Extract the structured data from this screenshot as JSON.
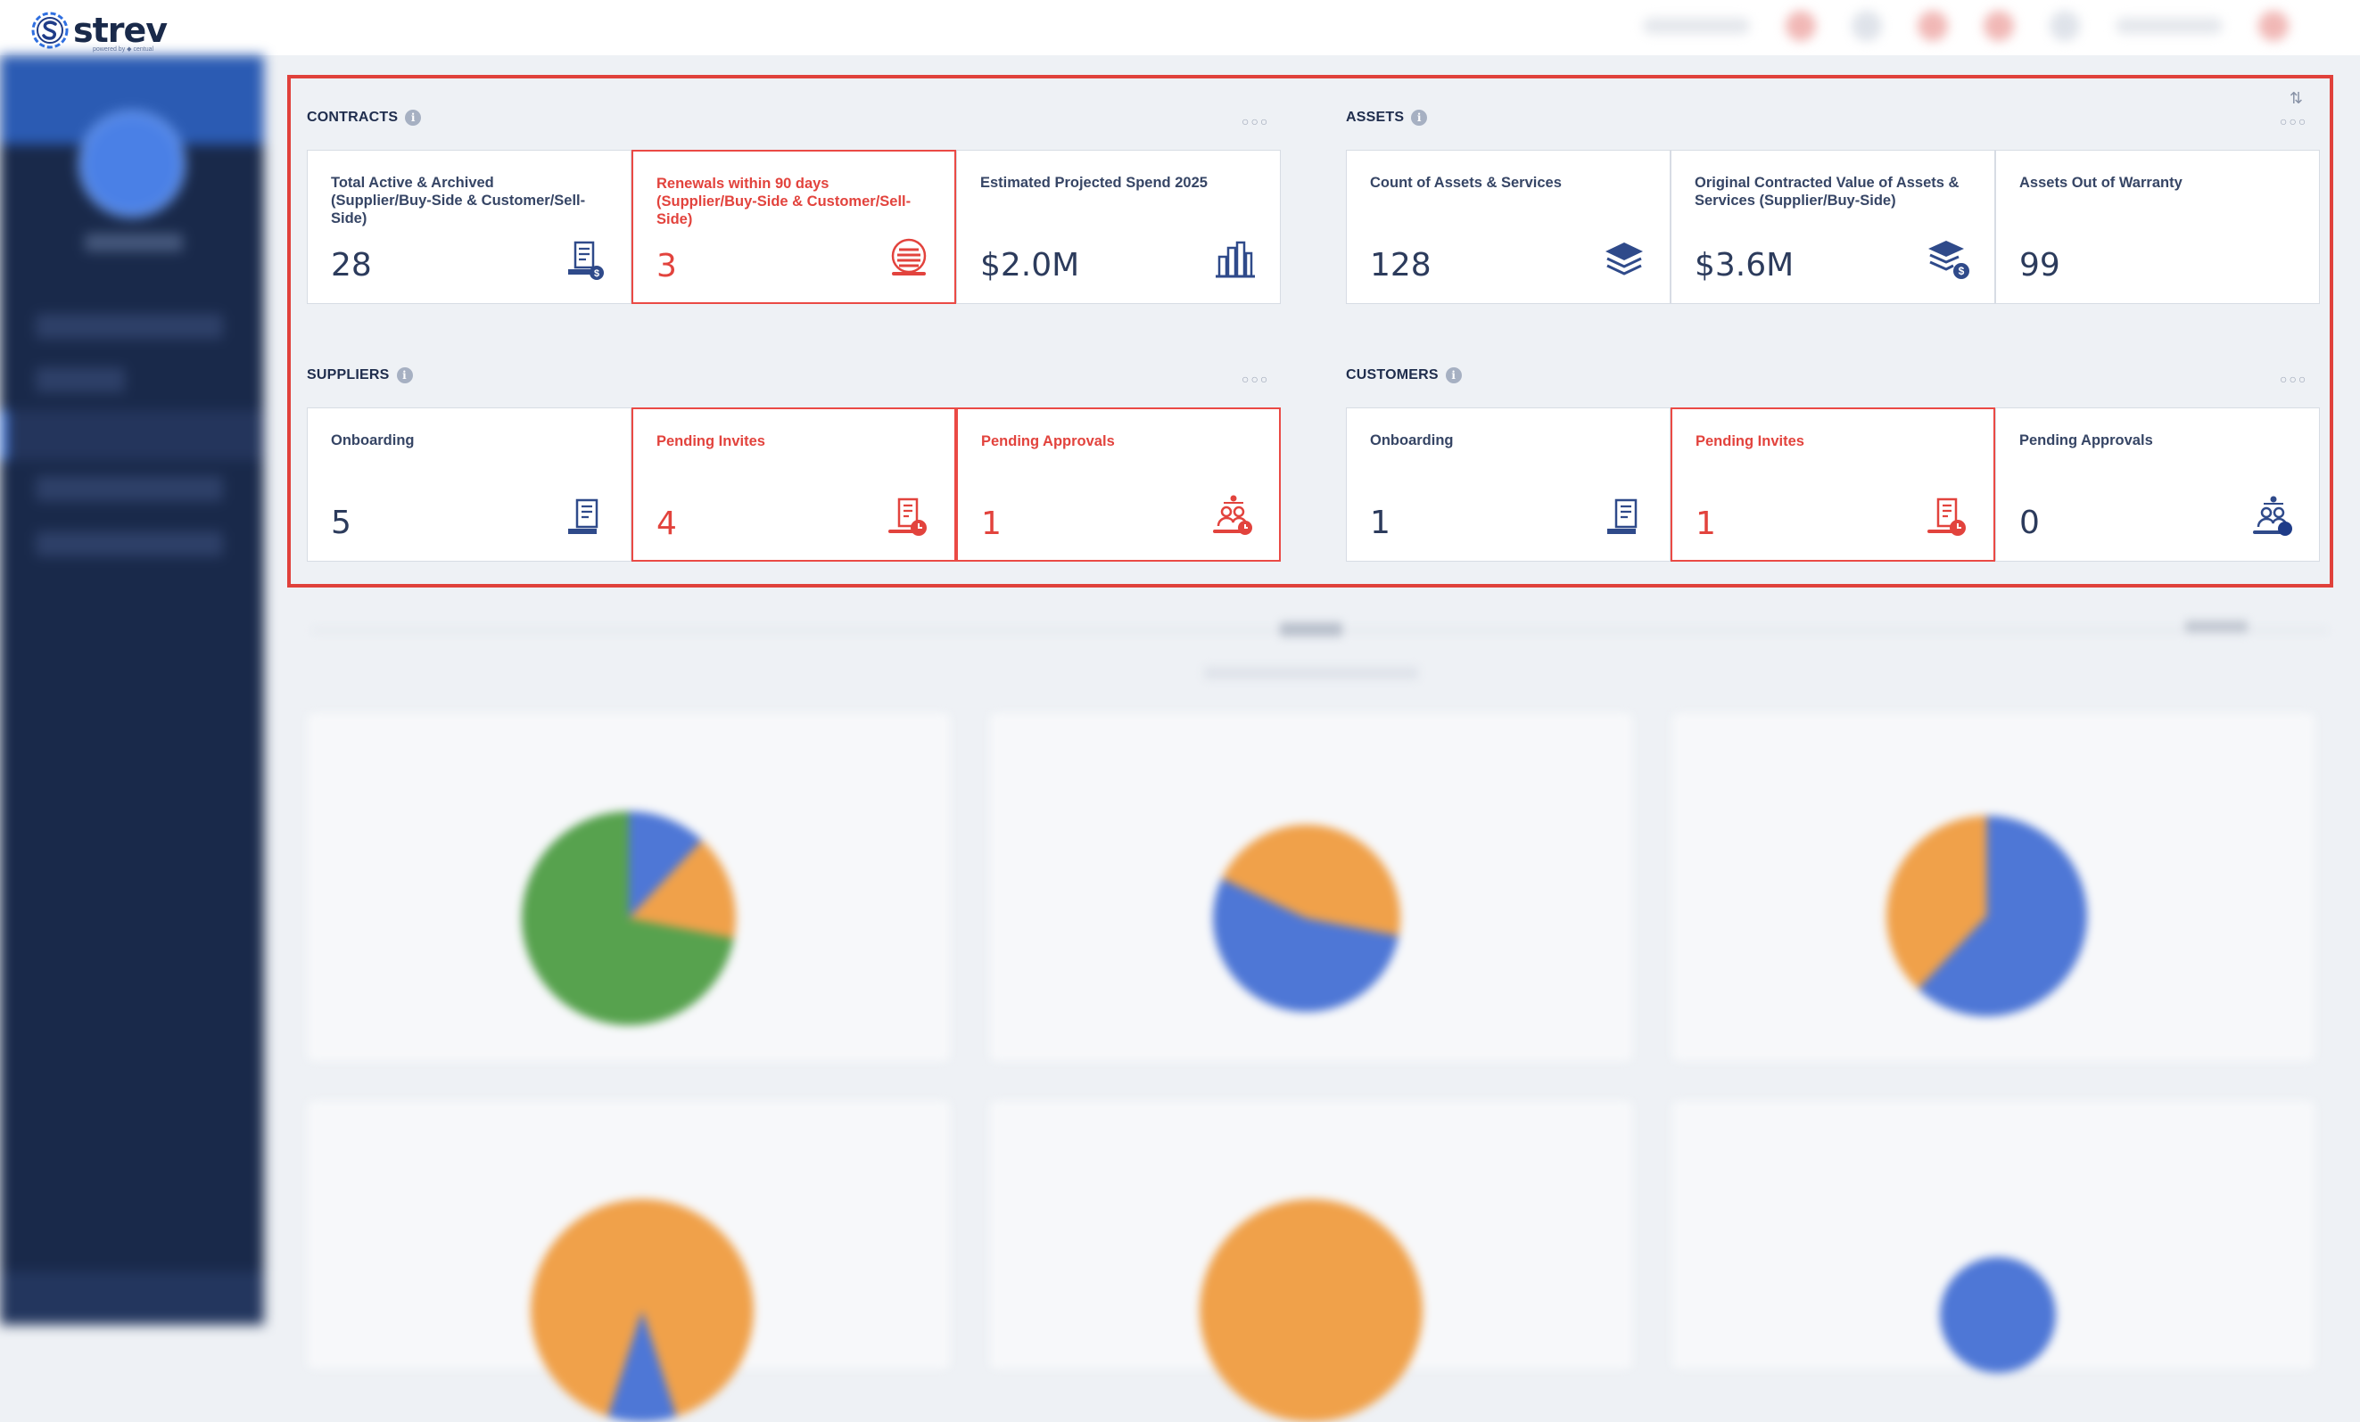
{
  "app": {
    "brand": "strev",
    "powered_by": "powered by ◆ centual"
  },
  "colors": {
    "primary": "#1f3c88",
    "alert": "#e2433d",
    "sidebar": "#19294a",
    "highlight_border": "#e0413b"
  },
  "sections": {
    "contracts": {
      "title": "CONTRACTS",
      "cards": [
        {
          "label": "Total Active & Archived (Supplier/Buy-Side & Customer/Sell-Side)",
          "value": "28",
          "icon": "contract-dollar-icon"
        },
        {
          "label": "Renewals within 90 days (Supplier/Buy-Side & Customer/Sell-Side)",
          "value": "3",
          "icon": "renewal-stack-icon"
        },
        {
          "label": "Estimated Projected Spend 2025",
          "value": "$2.0M",
          "icon": "building-chart-icon"
        }
      ]
    },
    "assets": {
      "title": "ASSETS",
      "cards": [
        {
          "label": "Count of Assets & Services",
          "value": "128",
          "icon": "layers-icon"
        },
        {
          "label": "Original Contracted Value of Assets & Services (Supplier/Buy-Side)",
          "value": "$3.6M",
          "icon": "layers-dollar-icon"
        },
        {
          "label": "Assets Out of Warranty",
          "value": "99",
          "icon": ""
        }
      ]
    },
    "suppliers": {
      "title": "SUPPLIERS",
      "cards": [
        {
          "label": "Onboarding",
          "value": "5",
          "icon": "scroll-document-icon"
        },
        {
          "label": "Pending Invites",
          "value": "4",
          "icon": "document-clock-icon"
        },
        {
          "label": "Pending Approvals",
          "value": "1",
          "icon": "people-clock-icon"
        }
      ]
    },
    "customers": {
      "title": "CUSTOMERS",
      "cards": [
        {
          "label": "Onboarding",
          "value": "1",
          "icon": "scroll-document-icon"
        },
        {
          "label": "Pending Invites",
          "value": "1",
          "icon": "document-clock-icon"
        },
        {
          "label": "Pending Approvals",
          "value": "0",
          "icon": "people-status-icon"
        }
      ]
    }
  }
}
